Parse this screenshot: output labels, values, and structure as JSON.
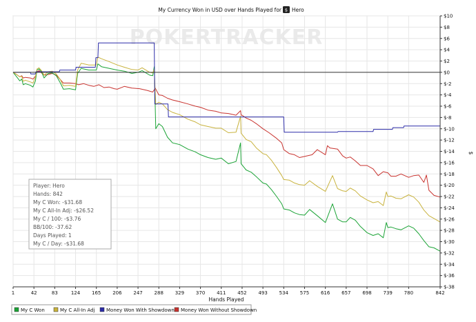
{
  "chart_data": {
    "type": "line",
    "title": "My Currency Won in USD over Hands Played for",
    "player_icon": "poker-site-icon",
    "player_name": "Hero",
    "watermark": {
      "left": "POKER",
      "right": "TRACKER"
    },
    "xlabel": "Hands Played",
    "ylabel": "$",
    "xlim": [
      1,
      842
    ],
    "ylim": [
      -38,
      10
    ],
    "x_ticks": [
      1,
      42,
      83,
      124,
      165,
      206,
      247,
      288,
      329,
      370,
      411,
      452,
      493,
      534,
      575,
      616,
      657,
      698,
      739,
      780,
      842
    ],
    "y_ticks": [
      10,
      8,
      6,
      4,
      2,
      0,
      -2,
      -4,
      -6,
      -8,
      -10,
      -12,
      -14,
      -16,
      -18,
      -20,
      -22,
      -24,
      -26,
      -28,
      -30,
      -32,
      -34,
      -36,
      -38
    ],
    "y_tick_labels": [
      "$10",
      "$8",
      "$6",
      "$4",
      "$2",
      "$0",
      "$-2",
      "$-4",
      "$-6",
      "$-8",
      "$-10",
      "$-12",
      "$-14",
      "$-16",
      "$-18",
      "$-20",
      "$-22",
      "$-24",
      "$-26",
      "$-28",
      "$-30",
      "$-32",
      "$-34",
      "$-36",
      "$-38"
    ],
    "stats": [
      "Player: Hero",
      "Hands: 842",
      "My C Won: -$31.68",
      "My C All-In Adj: -$26.52",
      "My C / 100: -$3.76",
      "BB/100: -37.62",
      "Days Played: 1",
      "My C / Day: -$31.68"
    ],
    "series": [
      {
        "name": "My C Won",
        "color": "#1aa335",
        "x": [
          1,
          8,
          14,
          18,
          21,
          25,
          35,
          40,
          45,
          48,
          52,
          57,
          62,
          70,
          78,
          86,
          94,
          100,
          112,
          124,
          128,
          135,
          150,
          165,
          168,
          175,
          190,
          206,
          220,
          235,
          247,
          255,
          270,
          276,
          279,
          282,
          288,
          295,
          305,
          315,
          329,
          345,
          360,
          370,
          385,
          400,
          411,
          425,
          440,
          449,
          450,
          452,
          460,
          470,
          480,
          493,
          500,
          510,
          520,
          530,
          534,
          545,
          555,
          565,
          575,
          585,
          600,
          616,
          630,
          640,
          650,
          657,
          665,
          675,
          685,
          698,
          710,
          720,
          730,
          736,
          739,
          745,
          755,
          765,
          780,
          790,
          800,
          810,
          820,
          830,
          842
        ],
        "values": [
          0,
          -0.8,
          -1.5,
          -1.2,
          -2.2,
          -2.0,
          -2.3,
          -2.6,
          -1.5,
          0.4,
          0.6,
          0.1,
          -1.0,
          -0.2,
          -0.1,
          -0.6,
          -1.9,
          -3.0,
          -2.9,
          -3.1,
          -0.2,
          0.7,
          0.4,
          0.4,
          1.5,
          1.0,
          0.7,
          0.4,
          0.2,
          -0.2,
          0.0,
          0.3,
          -0.5,
          -0.6,
          1.0,
          -10.0,
          -9.1,
          -9.6,
          -11.5,
          -12.5,
          -12.8,
          -13.6,
          -14.1,
          -14.6,
          -15.1,
          -15.4,
          -15.2,
          -16.2,
          -15.8,
          -12.5,
          -16.2,
          -16.4,
          -17.3,
          -17.7,
          -18.5,
          -19.6,
          -19.8,
          -20.8,
          -22.0,
          -23.3,
          -24.2,
          -24.4,
          -24.9,
          -25.2,
          -25.3,
          -24.3,
          -25.4,
          -26.6,
          -23.3,
          -26.0,
          -26.5,
          -26.5,
          -25.7,
          -26.2,
          -27.3,
          -28.4,
          -28.9,
          -28.6,
          -29.3,
          -26.6,
          -27.5,
          -27.4,
          -27.7,
          -27.9,
          -27.2,
          -27.6,
          -28.6,
          -29.8,
          -30.9,
          -31.1,
          -31.68
        ]
      },
      {
        "name": "My C All-In Adj",
        "color": "#c8b23c",
        "x": [
          1,
          8,
          14,
          18,
          21,
          25,
          35,
          40,
          45,
          48,
          52,
          57,
          62,
          70,
          78,
          86,
          94,
          100,
          112,
          124,
          128,
          135,
          150,
          165,
          168,
          175,
          190,
          206,
          220,
          235,
          247,
          255,
          270,
          276,
          279,
          282,
          288,
          295,
          305,
          315,
          329,
          345,
          360,
          370,
          385,
          400,
          411,
          425,
          440,
          449,
          450,
          452,
          460,
          470,
          480,
          493,
          500,
          510,
          520,
          530,
          534,
          545,
          555,
          565,
          575,
          585,
          600,
          616,
          630,
          640,
          650,
          657,
          665,
          675,
          685,
          698,
          710,
          720,
          730,
          736,
          739,
          745,
          755,
          765,
          780,
          790,
          800,
          810,
          820,
          830,
          842
        ],
        "values": [
          0,
          -0.4,
          -0.8,
          -0.7,
          -1.6,
          -1.4,
          -1.7,
          -1.9,
          -0.9,
          0.6,
          0.8,
          0.3,
          -0.5,
          0.1,
          0.2,
          -0.3,
          -1.3,
          -2.4,
          -2.3,
          -2.5,
          0.4,
          1.6,
          1.3,
          1.3,
          2.7,
          2.4,
          1.9,
          1.3,
          0.9,
          0.5,
          0.4,
          0.8,
          0.0,
          -0.1,
          0.5,
          -5.7,
          -5.3,
          -5.6,
          -6.6,
          -7.1,
          -7.5,
          -8.3,
          -8.8,
          -9.3,
          -9.6,
          -9.9,
          -9.9,
          -10.7,
          -10.6,
          -7.8,
          -10.8,
          -11.0,
          -11.9,
          -12.3,
          -13.4,
          -14.4,
          -14.6,
          -15.6,
          -16.9,
          -18.3,
          -19.0,
          -19.1,
          -19.6,
          -19.9,
          -20.0,
          -19.2,
          -20.2,
          -21.1,
          -18.3,
          -20.6,
          -21.0,
          -21.1,
          -20.5,
          -21.0,
          -21.9,
          -22.6,
          -23.1,
          -22.9,
          -23.6,
          -21.2,
          -22.0,
          -21.9,
          -22.3,
          -22.4,
          -21.7,
          -22.1,
          -23.0,
          -24.4,
          -25.4,
          -25.9,
          -26.52
        ]
      },
      {
        "name": "Money Won With Showdown",
        "color": "#2c2ca8",
        "x": [
          1,
          35,
          36,
          45,
          46,
          92,
          93,
          124,
          125,
          163,
          164,
          168,
          169,
          247,
          279,
          280,
          306,
          307,
          534,
          535,
          640,
          641,
          710,
          711,
          748,
          749,
          770,
          771,
          842
        ],
        "values": [
          0,
          0,
          -0.3,
          -0.3,
          0.1,
          0.1,
          0.4,
          0.4,
          0.9,
          0.9,
          2.6,
          2.6,
          5.2,
          5.2,
          5.2,
          -5.6,
          -5.6,
          -7.9,
          -7.9,
          -10.6,
          -10.6,
          -10.5,
          -10.5,
          -10.1,
          -10.1,
          -9.8,
          -9.8,
          -9.5,
          -9.5
        ]
      },
      {
        "name": "Money Won Without Showdown",
        "color": "#c8322e",
        "x": [
          1,
          8,
          14,
          18,
          21,
          25,
          35,
          40,
          45,
          48,
          52,
          57,
          62,
          70,
          78,
          86,
          94,
          100,
          112,
          124,
          130,
          140,
          150,
          160,
          170,
          180,
          190,
          200,
          206,
          220,
          235,
          250,
          265,
          276,
          281,
          288,
          295,
          305,
          315,
          329,
          345,
          360,
          370,
          385,
          400,
          411,
          425,
          440,
          449,
          450,
          452,
          460,
          470,
          480,
          493,
          505,
          520,
          530,
          534,
          545,
          555,
          565,
          575,
          590,
          600,
          616,
          620,
          625,
          640,
          650,
          657,
          665,
          675,
          685,
          698,
          710,
          720,
          730,
          739,
          745,
          755,
          765,
          780,
          790,
          800,
          810,
          815,
          820,
          830,
          842
        ],
        "values": [
          0,
          -0.4,
          -0.8,
          -0.6,
          -1.0,
          -0.9,
          -1.0,
          -1.2,
          -0.7,
          0.1,
          0.3,
          -0.1,
          -0.5,
          -0.4,
          -0.2,
          -0.5,
          -1.3,
          -1.9,
          -1.9,
          -2.0,
          -2.2,
          -2.0,
          -2.3,
          -2.5,
          -2.2,
          -2.7,
          -2.6,
          -2.9,
          -3.0,
          -2.5,
          -2.8,
          -2.9,
          -3.2,
          -3.5,
          -2.8,
          -4.0,
          -4.1,
          -4.6,
          -4.9,
          -5.2,
          -5.6,
          -6.0,
          -6.2,
          -6.7,
          -6.9,
          -7.2,
          -7.3,
          -7.6,
          -6.8,
          -7.6,
          -7.6,
          -8.1,
          -8.5,
          -9.1,
          -10.0,
          -10.7,
          -11.7,
          -12.5,
          -13.7,
          -14.4,
          -14.6,
          -15.1,
          -14.9,
          -14.6,
          -13.7,
          -14.6,
          -13.0,
          -13.4,
          -13.6,
          -14.8,
          -15.2,
          -15.0,
          -15.7,
          -16.5,
          -16.5,
          -17.1,
          -18.3,
          -17.6,
          -17.8,
          -18.4,
          -18.4,
          -18.0,
          -18.6,
          -18.3,
          -18.2,
          -19.5,
          -18.2,
          -20.9,
          -21.8,
          -22.1
        ]
      }
    ]
  }
}
